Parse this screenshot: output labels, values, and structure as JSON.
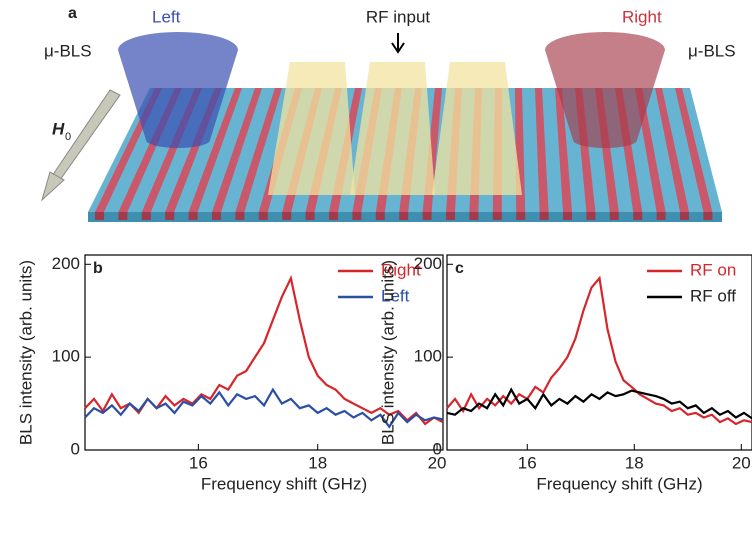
{
  "panel_a": {
    "label": "a",
    "left_label": "Left",
    "right_label": "Right",
    "left_probe": "μ-BLS",
    "right_probe": "μ-BLS",
    "rf_label": "RF input",
    "field_label": "H",
    "field_subscript": "0"
  },
  "chart_data": [
    {
      "type": "line",
      "panel_label": "b",
      "xlabel": "Frequency shift (GHz)",
      "ylabel": "BLS intensity (arb. units)",
      "xlim": [
        14.1,
        20.1
      ],
      "ylim": [
        0,
        210
      ],
      "xticks": [
        16,
        18,
        20
      ],
      "yticks": [
        0,
        100,
        200
      ],
      "legend": "upper right",
      "x": [
        14.1,
        14.25,
        14.4,
        14.55,
        14.7,
        14.85,
        15.0,
        15.15,
        15.3,
        15.45,
        15.6,
        15.75,
        15.9,
        16.05,
        16.2,
        16.35,
        16.5,
        16.65,
        16.8,
        16.95,
        17.1,
        17.25,
        17.4,
        17.55,
        17.7,
        17.85,
        18.0,
        18.15,
        18.3,
        18.45,
        18.6,
        18.75,
        18.9,
        19.05,
        19.2,
        19.35,
        19.5,
        19.65,
        19.8,
        19.95,
        20.1
      ],
      "series": [
        {
          "name": "Right",
          "color": "#d7262b",
          "values": [
            45,
            55,
            42,
            60,
            45,
            50,
            40,
            55,
            45,
            58,
            48,
            55,
            50,
            60,
            55,
            70,
            65,
            80,
            85,
            100,
            115,
            140,
            165,
            185,
            140,
            100,
            80,
            70,
            65,
            55,
            50,
            45,
            40,
            45,
            38,
            42,
            32,
            40,
            28,
            35,
            30
          ]
        },
        {
          "name": "Left",
          "color": "#2b4fa3",
          "values": [
            35,
            45,
            40,
            48,
            38,
            50,
            42,
            55,
            45,
            50,
            40,
            52,
            48,
            58,
            50,
            62,
            48,
            60,
            55,
            58,
            48,
            65,
            50,
            55,
            45,
            48,
            40,
            45,
            38,
            42,
            35,
            40,
            32,
            38,
            25,
            40,
            30,
            38,
            32,
            35,
            33
          ]
        }
      ]
    },
    {
      "type": "line",
      "panel_label": "c",
      "xlabel": "Frequency shift (GHz)",
      "ylabel": "BLS intensity (arb. units)",
      "xlim": [
        14.5,
        20.2
      ],
      "ylim": [
        0,
        210
      ],
      "xticks": [
        16,
        18,
        20
      ],
      "yticks": [
        0,
        100,
        200
      ],
      "legend": "upper right",
      "x": [
        14.5,
        14.65,
        14.8,
        14.95,
        15.1,
        15.25,
        15.4,
        15.55,
        15.7,
        15.85,
        16.0,
        16.15,
        16.3,
        16.45,
        16.6,
        16.75,
        16.9,
        17.05,
        17.2,
        17.35,
        17.5,
        17.65,
        17.8,
        17.95,
        18.1,
        18.25,
        18.4,
        18.55,
        18.7,
        18.85,
        19.0,
        19.15,
        19.3,
        19.45,
        19.6,
        19.75,
        19.9,
        20.05,
        20.2
      ],
      "series": [
        {
          "name": "RF on",
          "color": "#d7262b",
          "values": [
            45,
            55,
            42,
            60,
            45,
            55,
            48,
            58,
            50,
            60,
            55,
            68,
            62,
            78,
            88,
            100,
            120,
            150,
            175,
            185,
            130,
            95,
            75,
            68,
            60,
            55,
            50,
            48,
            42,
            45,
            38,
            40,
            35,
            38,
            30,
            34,
            28,
            32,
            30
          ]
        },
        {
          "name": "RF off",
          "color": "#000000",
          "values": [
            40,
            38,
            45,
            42,
            50,
            45,
            60,
            48,
            65,
            50,
            55,
            45,
            60,
            48,
            55,
            50,
            58,
            52,
            60,
            55,
            62,
            58,
            60,
            64,
            62,
            60,
            58,
            55,
            50,
            52,
            45,
            48,
            40,
            45,
            38,
            42,
            35,
            40,
            34
          ]
        }
      ]
    }
  ]
}
